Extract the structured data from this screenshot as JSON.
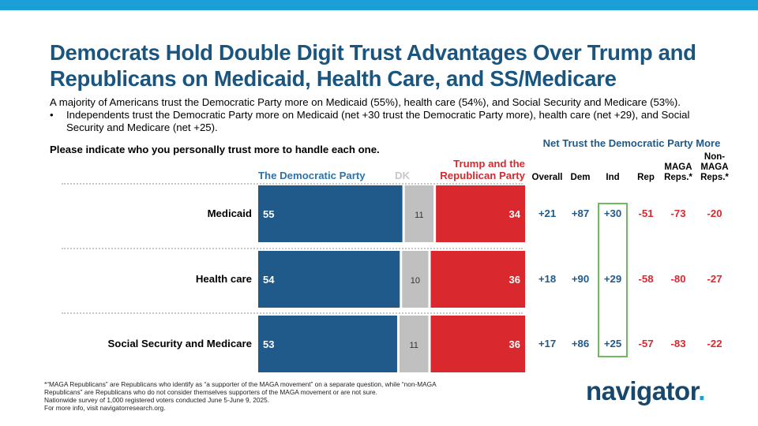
{
  "title": "Democrats Hold Double Digit Trust Advantages Over Trump and Republicans on Medicaid, Health Care, and SS/Medicare",
  "intro": "A majority of Americans trust the Democratic Party more on Medicaid (55%), health care (54%), and Social Security and Medicare (53%).",
  "bullet_marker": "•",
  "bullet": "Independents trust the Democratic Party more on Medicaid (net +30 trust the Democratic Party more), health care (net +29), and Social Security and Medicare (net +25).",
  "question": "Please indicate who you personally trust more to handle each one.",
  "net_header": "Net Trust the Democratic Party More",
  "legend": {
    "dem": "The Democratic Party",
    "dk": "DK",
    "rep_line1": "Trump and the",
    "rep_line2": "Republican Party"
  },
  "colors": {
    "dem": "#1f5a8a",
    "dk": "#c0c0c0",
    "rep": "#d9282e",
    "net_positive": "#1f5a8a",
    "net_negative": "#d9282e",
    "ind_box": "#6dbb5e",
    "title": "#1a5580",
    "accent": "#1a9fd6"
  },
  "net_columns": [
    {
      "label": [
        "Overall"
      ]
    },
    {
      "label": [
        "Dem"
      ]
    },
    {
      "label": [
        "Ind"
      ]
    },
    {
      "label": [
        "Rep"
      ]
    },
    {
      "label": [
        "MAGA",
        "Reps.*"
      ]
    },
    {
      "label": [
        "Non-",
        "MAGA",
        "Reps.*"
      ]
    }
  ],
  "chart_data": {
    "type": "bar",
    "stacked": true,
    "orientation": "horizontal",
    "categories": [
      "Medicaid",
      "Health care",
      "Social Security and Medicare"
    ],
    "series": [
      {
        "name": "The Democratic Party",
        "values": [
          55,
          54,
          53
        ]
      },
      {
        "name": "DK",
        "values": [
          11,
          10,
          11
        ]
      },
      {
        "name": "Trump and the Republican Party",
        "values": [
          34,
          36,
          36
        ]
      }
    ],
    "net_trust": [
      {
        "overall": "+21",
        "dem": "+87",
        "ind": "+30",
        "rep": "-51",
        "maga": "-73",
        "nonmaga": "-20"
      },
      {
        "overall": "+18",
        "dem": "+90",
        "ind": "+29",
        "rep": "-58",
        "maga": "-80",
        "nonmaga": "-27"
      },
      {
        "overall": "+17",
        "dem": "+86",
        "ind": "+25",
        "rep": "-57",
        "maga": "-83",
        "nonmaga": "-22"
      }
    ]
  },
  "footnote": [
    "*“MAGA Republicans” are Republicans who identify as “a supporter of the MAGA movement” on a separate question, while “non-MAGA",
    "Republicans” are Republicans who do not consider themselves supporters of the MAGA movement or are not sure.",
    "Nationwide survey of 1,000 registered voters conducted June 5-June 9, 2025.",
    "For more info, visit navigatorresearch.org."
  ],
  "logo": {
    "text": "navigator",
    "dot": "."
  }
}
